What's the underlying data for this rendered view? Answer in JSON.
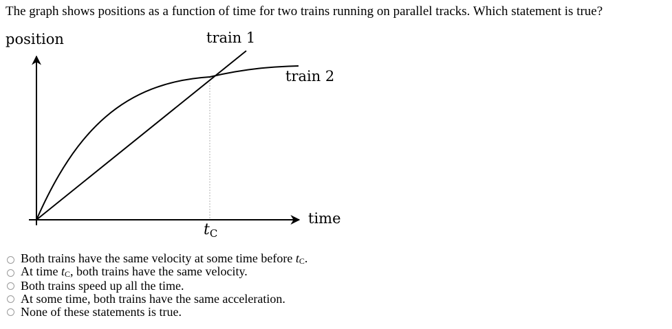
{
  "question": {
    "text": "The graph shows positions as a function of time for two trains running on parallel tracks. Which statement is true?"
  },
  "graph": {
    "y_axis_label": "position",
    "x_axis_label": "time",
    "train1_label": "train 1",
    "train2_label": "train 2",
    "tc_symbol": "t",
    "tc_subscript": "C"
  },
  "options": [
    {
      "before": "Both trains have the same velocity at some time before ",
      "tc": true,
      "after": "."
    },
    {
      "before": "At time ",
      "tc": true,
      "after": ", both trains have the same velocity."
    },
    {
      "before": "Both trains speed up all the time.",
      "tc": false,
      "after": ""
    },
    {
      "before": "At some time, both trains have the same acceleration.",
      "tc": false,
      "after": ""
    },
    {
      "before": "None of these statements is true.",
      "tc": false,
      "after": ""
    }
  ]
}
